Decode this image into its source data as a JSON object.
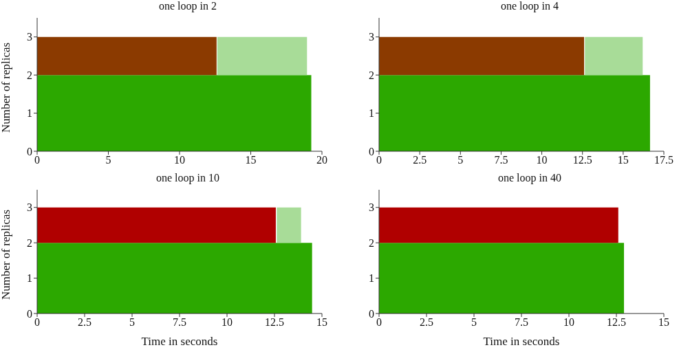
{
  "chart_data": [
    {
      "type": "area",
      "title": "one loop in 2",
      "ylabel": "Number of replicas",
      "stacked": true,
      "x": [
        0,
        12.6,
        12.65,
        18.95,
        19.25
      ],
      "series": [
        {
          "color": "#2ca800",
          "values": [
            2,
            2,
            2,
            2,
            2
          ]
        },
        {
          "color": "#8b3a00",
          "values": [
            1,
            1,
            null,
            null,
            null
          ]
        },
        {
          "color": "#a8dc98",
          "values": [
            null,
            null,
            1,
            1,
            null
          ]
        }
      ],
      "xlim": [
        0,
        20
      ],
      "xticks": [
        0,
        5,
        10,
        15,
        20
      ],
      "ylim": [
        0,
        3.5
      ],
      "yticks": [
        0,
        1,
        2,
        3
      ],
      "grid": false,
      "legend": false,
      "marker": "none"
    },
    {
      "type": "area",
      "title": "one loop in 4",
      "stacked": true,
      "x": [
        0,
        12.6,
        12.65,
        16.2,
        16.65
      ],
      "series": [
        {
          "color": "#2ca800",
          "values": [
            2,
            2,
            2,
            2,
            2
          ]
        },
        {
          "color": "#8b3a00",
          "values": [
            1,
            1,
            null,
            null,
            null
          ]
        },
        {
          "color": "#a8dc98",
          "values": [
            null,
            null,
            1,
            1,
            null
          ]
        }
      ],
      "xlim": [
        0,
        17.5
      ],
      "xticks": [
        0,
        2.5,
        5,
        7.5,
        10,
        12.5,
        15,
        17.5
      ],
      "ylim": [
        0,
        3.5
      ],
      "yticks": [
        0,
        1,
        2,
        3
      ],
      "grid": false,
      "legend": false,
      "marker": "none"
    },
    {
      "type": "area",
      "title": "one loop in 10",
      "xlabel": "Time in seconds",
      "ylabel": "Number of replicas",
      "stacked": true,
      "x": [
        0,
        12.57,
        12.62,
        13.9,
        14.48
      ],
      "series": [
        {
          "color": "#2ca800",
          "values": [
            2,
            2,
            2,
            2,
            2
          ]
        },
        {
          "color": "#b00000",
          "values": [
            1,
            1,
            null,
            null,
            null
          ]
        },
        {
          "color": "#a8dc98",
          "values": [
            null,
            null,
            1,
            1,
            null
          ]
        }
      ],
      "xlim": [
        0,
        15
      ],
      "xticks": [
        0,
        2.5,
        5,
        7.5,
        10,
        12.5,
        15
      ],
      "ylim": [
        0,
        3.5
      ],
      "yticks": [
        0,
        1,
        2,
        3
      ],
      "grid": false,
      "legend": false,
      "marker": "none"
    },
    {
      "type": "area",
      "title": "one loop in 40",
      "xlabel": "Time in seconds",
      "stacked": true,
      "x": [
        0,
        12.6,
        12.9
      ],
      "series": [
        {
          "color": "#2ca800",
          "values": [
            2,
            2,
            2
          ]
        },
        {
          "color": "#b00000",
          "values": [
            1,
            1,
            null
          ]
        }
      ],
      "xlim": [
        0,
        15
      ],
      "xticks": [
        0,
        2.5,
        5,
        7.5,
        10,
        12.5,
        15
      ],
      "ylim": [
        0,
        3.5
      ],
      "yticks": [
        0,
        1,
        2,
        3
      ],
      "grid": false,
      "legend": false,
      "marker": "none"
    }
  ]
}
